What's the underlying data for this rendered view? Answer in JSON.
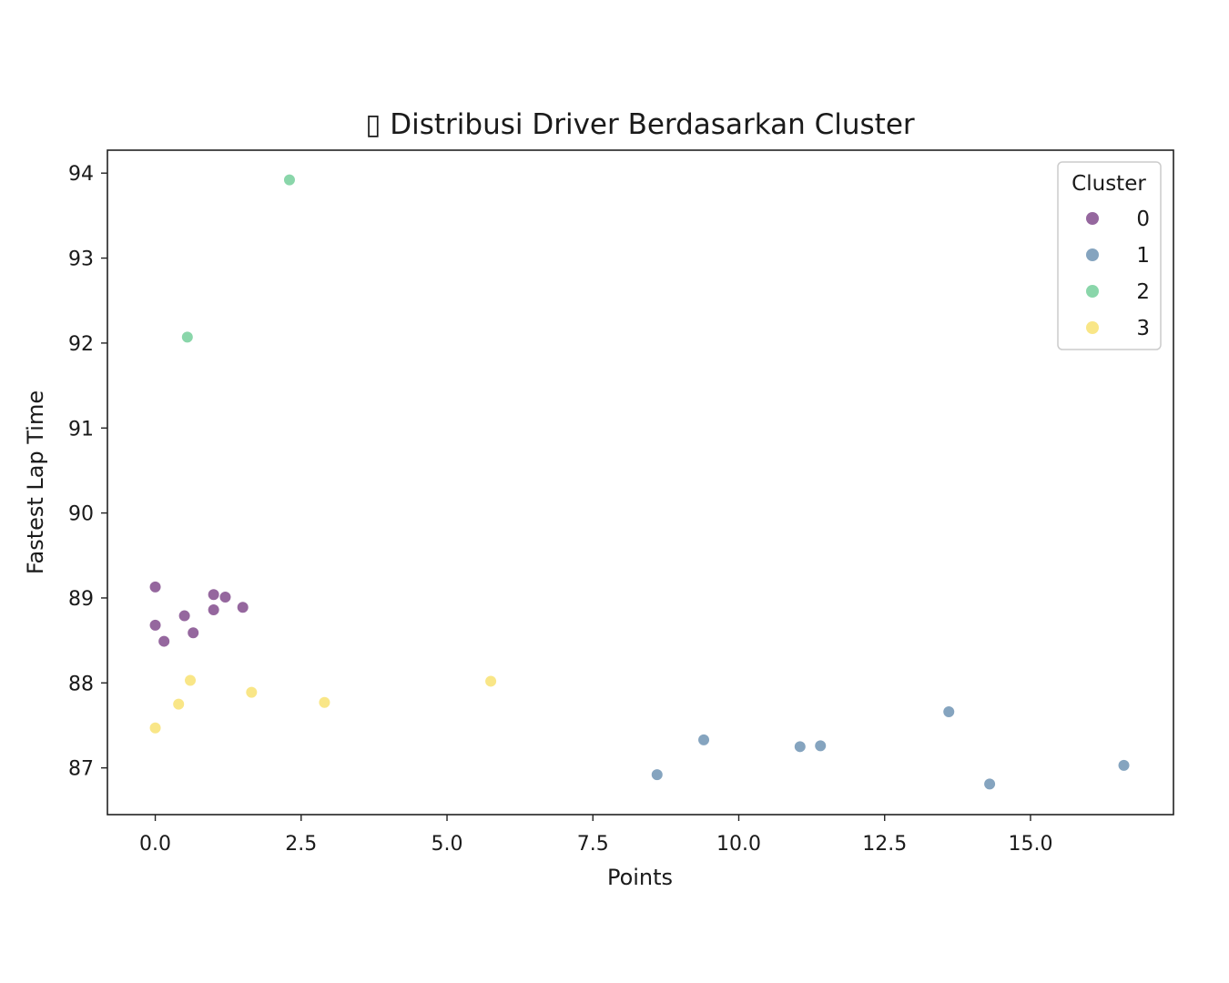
{
  "chart_data": {
    "type": "scatter",
    "title": "▯ Distribusi Driver Berdasarkan Cluster",
    "xlabel": "Points",
    "ylabel": "Fastest Lap Time",
    "xlim": [
      -0.82,
      17.45
    ],
    "ylim": [
      86.45,
      94.27
    ],
    "x_ticks": [
      0.0,
      2.5,
      5.0,
      7.5,
      10.0,
      12.5,
      15.0
    ],
    "x_tick_labels": [
      "0.0",
      "2.5",
      "5.0",
      "7.5",
      "10.0",
      "12.5",
      "15.0"
    ],
    "y_ticks": [
      87,
      88,
      89,
      90,
      91,
      92,
      93,
      94
    ],
    "y_tick_labels": [
      "87",
      "88",
      "89",
      "90",
      "91",
      "92",
      "93",
      "94"
    ],
    "grid": false,
    "legend": {
      "title": "Cluster",
      "placement": "upper-right"
    },
    "series": [
      {
        "name": "0",
        "color": "#8c5a96",
        "points": [
          {
            "x": 0.0,
            "y": 89.13
          },
          {
            "x": 0.0,
            "y": 88.68
          },
          {
            "x": 0.15,
            "y": 88.49
          },
          {
            "x": 0.5,
            "y": 88.79
          },
          {
            "x": 0.65,
            "y": 88.59
          },
          {
            "x": 1.0,
            "y": 89.04
          },
          {
            "x": 1.0,
            "y": 88.86
          },
          {
            "x": 1.2,
            "y": 89.01
          },
          {
            "x": 1.5,
            "y": 88.89
          }
        ]
      },
      {
        "name": "1",
        "color": "#7b9cba",
        "points": [
          {
            "x": 8.6,
            "y": 86.92
          },
          {
            "x": 9.4,
            "y": 87.33
          },
          {
            "x": 11.05,
            "y": 87.25
          },
          {
            "x": 11.4,
            "y": 87.26
          },
          {
            "x": 13.6,
            "y": 87.66
          },
          {
            "x": 14.3,
            "y": 86.81
          },
          {
            "x": 16.6,
            "y": 87.03
          }
        ]
      },
      {
        "name": "2",
        "color": "#80d2a3",
        "points": [
          {
            "x": 2.3,
            "y": 93.92
          },
          {
            "x": 0.55,
            "y": 92.07
          }
        ]
      },
      {
        "name": "3",
        "color": "#f9e47d",
        "points": [
          {
            "x": 0.0,
            "y": 87.47
          },
          {
            "x": 0.4,
            "y": 87.75
          },
          {
            "x": 0.6,
            "y": 88.03
          },
          {
            "x": 1.65,
            "y": 87.89
          },
          {
            "x": 2.9,
            "y": 87.77
          },
          {
            "x": 5.75,
            "y": 88.02
          }
        ]
      }
    ]
  }
}
